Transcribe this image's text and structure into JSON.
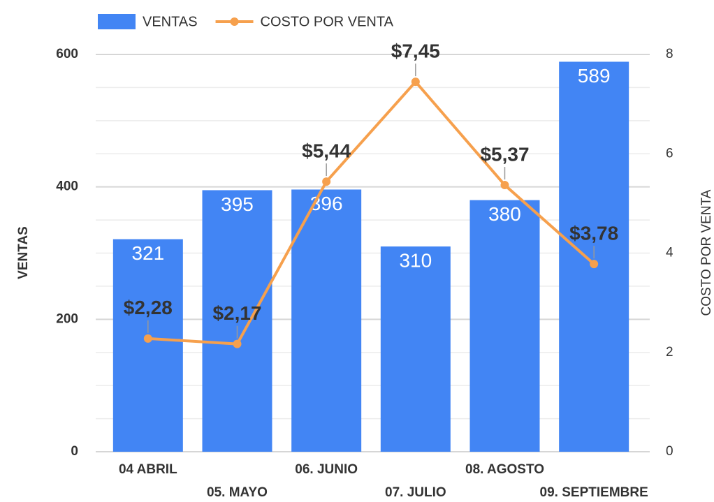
{
  "chart_data": {
    "type": "bar_line",
    "categories": [
      "04 ABRIL",
      "05. MAYO",
      "06. JUNIO",
      "07. JULIO",
      "08. AGOSTO",
      "09. SEPTIEMBRE"
    ],
    "series": [
      {
        "name": "VENTAS",
        "type": "bar",
        "color": "#4285f4",
        "axis": "y",
        "values": [
          321,
          395,
          396,
          310,
          380,
          589
        ]
      },
      {
        "name": "COSTO POR VENTA",
        "type": "line",
        "color": "#f6a04d",
        "axis": "y2",
        "values": [
          2.28,
          2.17,
          5.44,
          7.45,
          5.37,
          3.78
        ],
        "value_labels": [
          "$2,28",
          "$2,17",
          "$5,44",
          "$7,45",
          "$5,37",
          "$3,78"
        ]
      }
    ],
    "ylabel": "VENTAS",
    "y2label": "COSTO POR VENTA",
    "ylim": [
      0,
      600
    ],
    "yticks": [
      0,
      200,
      400,
      600
    ],
    "y2lim": [
      0,
      8
    ],
    "y2ticks": [
      0,
      2,
      4,
      6,
      8
    ],
    "minor_yticks": [
      50,
      100,
      150,
      250,
      300,
      350,
      450,
      500,
      550
    ],
    "grid": true,
    "legend": "top"
  }
}
